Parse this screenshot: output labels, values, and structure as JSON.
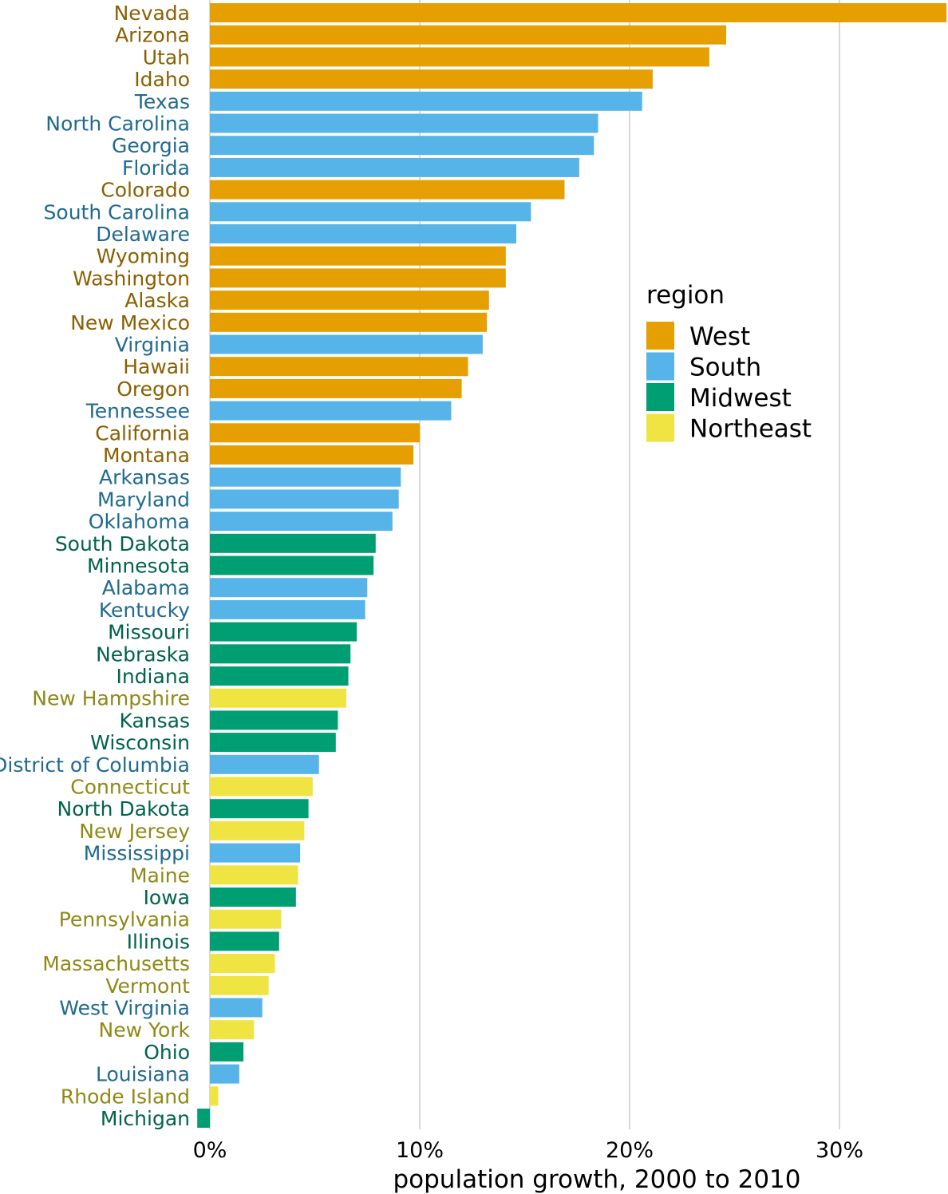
{
  "chart_data": {
    "type": "bar",
    "orientation": "horizontal",
    "xlabel": "population growth, 2000 to 2010",
    "ylabel": "",
    "xlim": [
      -0.6,
      35
    ],
    "xticks": [
      0,
      10,
      20,
      30
    ],
    "xtick_labels": [
      "0%",
      "10%",
      "20%",
      "30%"
    ],
    "grid": "vertical major",
    "legend": {
      "title": "region",
      "placement": "right",
      "entries": [
        {
          "name": "West",
          "color": "#E69F00",
          "label_color": "#8a5f00"
        },
        {
          "name": "South",
          "color": "#56B4E9",
          "label_color": "#1f6a8e"
        },
        {
          "name": "Midwest",
          "color": "#009E73",
          "label_color": "#00634a"
        },
        {
          "name": "Northeast",
          "color": "#F0E442",
          "label_color": "#8f8815"
        }
      ]
    },
    "bars": [
      {
        "state": "Nevada",
        "region": "West",
        "value": 35.1
      },
      {
        "state": "Arizona",
        "region": "West",
        "value": 24.6
      },
      {
        "state": "Utah",
        "region": "West",
        "value": 23.8
      },
      {
        "state": "Idaho",
        "region": "West",
        "value": 21.1
      },
      {
        "state": "Texas",
        "region": "South",
        "value": 20.6
      },
      {
        "state": "North Carolina",
        "region": "South",
        "value": 18.5
      },
      {
        "state": "Georgia",
        "region": "South",
        "value": 18.3
      },
      {
        "state": "Florida",
        "region": "South",
        "value": 17.6
      },
      {
        "state": "Colorado",
        "region": "West",
        "value": 16.9
      },
      {
        "state": "South Carolina",
        "region": "South",
        "value": 15.3
      },
      {
        "state": "Delaware",
        "region": "South",
        "value": 14.6
      },
      {
        "state": "Wyoming",
        "region": "West",
        "value": 14.1
      },
      {
        "state": "Washington",
        "region": "West",
        "value": 14.1
      },
      {
        "state": "Alaska",
        "region": "West",
        "value": 13.3
      },
      {
        "state": "New Mexico",
        "region": "West",
        "value": 13.2
      },
      {
        "state": "Virginia",
        "region": "South",
        "value": 13.0
      },
      {
        "state": "Hawaii",
        "region": "West",
        "value": 12.3
      },
      {
        "state": "Oregon",
        "region": "West",
        "value": 12.0
      },
      {
        "state": "Tennessee",
        "region": "South",
        "value": 11.5
      },
      {
        "state": "California",
        "region": "West",
        "value": 10.0
      },
      {
        "state": "Montana",
        "region": "West",
        "value": 9.7
      },
      {
        "state": "Arkansas",
        "region": "South",
        "value": 9.1
      },
      {
        "state": "Maryland",
        "region": "South",
        "value": 9.0
      },
      {
        "state": "Oklahoma",
        "region": "South",
        "value": 8.7
      },
      {
        "state": "South Dakota",
        "region": "Midwest",
        "value": 7.9
      },
      {
        "state": "Minnesota",
        "region": "Midwest",
        "value": 7.8
      },
      {
        "state": "Alabama",
        "region": "South",
        "value": 7.5
      },
      {
        "state": "Kentucky",
        "region": "South",
        "value": 7.4
      },
      {
        "state": "Missouri",
        "region": "Midwest",
        "value": 7.0
      },
      {
        "state": "Nebraska",
        "region": "Midwest",
        "value": 6.7
      },
      {
        "state": "Indiana",
        "region": "Midwest",
        "value": 6.6
      },
      {
        "state": "New Hampshire",
        "region": "Northeast",
        "value": 6.5
      },
      {
        "state": "Kansas",
        "region": "Midwest",
        "value": 6.1
      },
      {
        "state": "Wisconsin",
        "region": "Midwest",
        "value": 6.0
      },
      {
        "state": "District of Columbia",
        "region": "South",
        "value": 5.2
      },
      {
        "state": "Connecticut",
        "region": "Northeast",
        "value": 4.9
      },
      {
        "state": "North Dakota",
        "region": "Midwest",
        "value": 4.7
      },
      {
        "state": "New Jersey",
        "region": "Northeast",
        "value": 4.5
      },
      {
        "state": "Mississippi",
        "region": "South",
        "value": 4.3
      },
      {
        "state": "Maine",
        "region": "Northeast",
        "value": 4.2
      },
      {
        "state": "Iowa",
        "region": "Midwest",
        "value": 4.1
      },
      {
        "state": "Pennsylvania",
        "region": "Northeast",
        "value": 3.4
      },
      {
        "state": "Illinois",
        "region": "Midwest",
        "value": 3.3
      },
      {
        "state": "Massachusetts",
        "region": "Northeast",
        "value": 3.1
      },
      {
        "state": "Vermont",
        "region": "Northeast",
        "value": 2.8
      },
      {
        "state": "West Virginia",
        "region": "South",
        "value": 2.5
      },
      {
        "state": "New York",
        "region": "Northeast",
        "value": 2.1
      },
      {
        "state": "Ohio",
        "region": "Midwest",
        "value": 1.6
      },
      {
        "state": "Louisiana",
        "region": "South",
        "value": 1.4
      },
      {
        "state": "Rhode Island",
        "region": "Northeast",
        "value": 0.4
      },
      {
        "state": "Michigan",
        "region": "Midwest",
        "value": -0.6
      }
    ]
  }
}
